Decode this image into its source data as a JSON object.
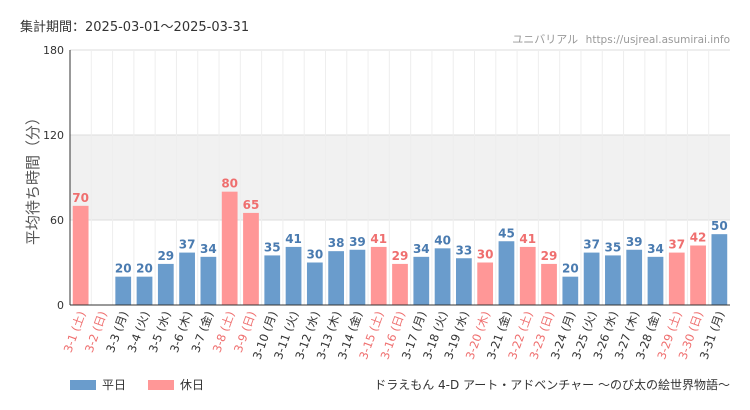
{
  "header": {
    "period_label": "集計期間：2025-03-01～2025-03-31",
    "source_name": "ユニバリアル",
    "source_url": "https://usjreal.asumirai.info"
  },
  "attraction_name": "ドラえもん 4-D アート・アドベンチャー ～のび太の絵世界物語～",
  "legend": [
    {
      "label": "平日",
      "color": "#6a9ccc"
    },
    {
      "label": "休日",
      "color": "#ff9797"
    }
  ],
  "colors": {
    "weekday": "#6a9ccc",
    "holiday": "#ff9797",
    "weekday_label": "#4a7bb0",
    "holiday_label": "#ef6f6f",
    "band": "#f1f1f1"
  },
  "chart_data": {
    "type": "bar",
    "ylabel": "平均待ち時間（分）",
    "ylim": [
      0,
      180
    ],
    "yticks": [
      0,
      60,
      120,
      180
    ],
    "shaded_band": [
      60,
      120
    ],
    "categories": [
      "3-1 (土)",
      "3-2 (日)",
      "3-3 (月)",
      "3-4 (火)",
      "3-5 (水)",
      "3-6 (木)",
      "3-7 (金)",
      "3-8 (土)",
      "3-9 (日)",
      "3-10 (月)",
      "3-11 (火)",
      "3-12 (水)",
      "3-13 (木)",
      "3-14 (金)",
      "3-15 (土)",
      "3-16 (日)",
      "3-17 (月)",
      "3-18 (火)",
      "3-19 (水)",
      "3-20 (木)",
      "3-21 (金)",
      "3-22 (土)",
      "3-23 (日)",
      "3-24 (月)",
      "3-25 (火)",
      "3-26 (水)",
      "3-27 (木)",
      "3-28 (金)",
      "3-29 (土)",
      "3-30 (日)",
      "3-31 (月)"
    ],
    "values": [
      70,
      0,
      20,
      20,
      29,
      37,
      34,
      80,
      65,
      35,
      41,
      30,
      38,
      39,
      41,
      29,
      34,
      40,
      33,
      30,
      45,
      41,
      29,
      20,
      37,
      35,
      39,
      34,
      37,
      42,
      50
    ],
    "labels": [
      "70",
      "",
      "20",
      "20",
      "29",
      "37",
      "34",
      "80",
      "65",
      "35",
      "41",
      "30",
      "38",
      "39",
      "41",
      "29",
      "34",
      "40",
      "33",
      "30",
      "45",
      "41",
      "29",
      "20",
      "37",
      "35",
      "39",
      "34",
      "37",
      "42",
      "50"
    ],
    "holiday": [
      true,
      true,
      false,
      false,
      false,
      false,
      false,
      true,
      true,
      false,
      false,
      false,
      false,
      false,
      true,
      true,
      false,
      false,
      false,
      true,
      false,
      true,
      true,
      false,
      false,
      false,
      false,
      false,
      true,
      true,
      false
    ]
  }
}
